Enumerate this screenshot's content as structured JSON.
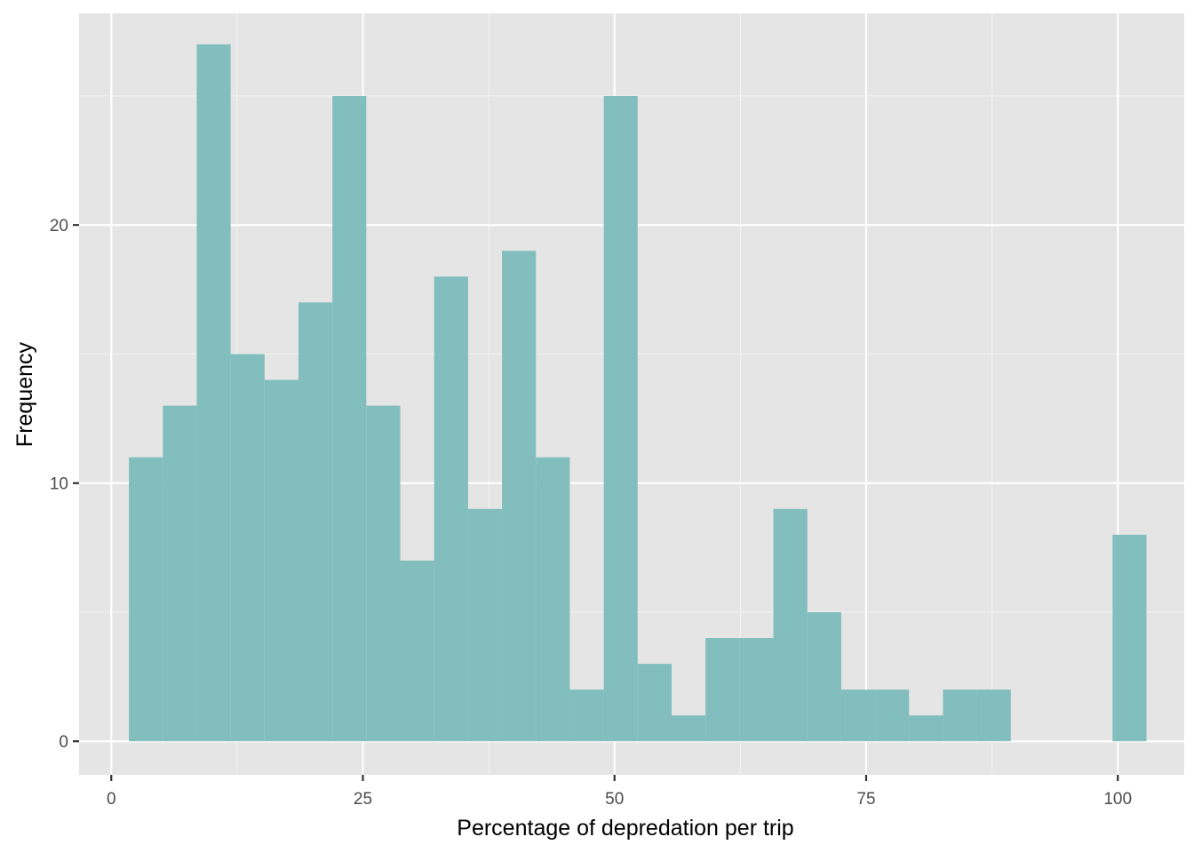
{
  "chart_data": {
    "type": "bar",
    "subtype": "histogram",
    "xlabel": "Percentage of depredation per trip",
    "ylabel": "Frequency",
    "xlim": [
      -3.2,
      106.6
    ],
    "ylim": [
      -1.3,
      28.2
    ],
    "x_ticks": [
      0,
      25,
      50,
      75,
      100
    ],
    "x_minor_ticks": [
      12.5,
      37.5,
      62.5,
      87.5
    ],
    "y_ticks": [
      0,
      10,
      20
    ],
    "y_minor_ticks": [
      5,
      15,
      25
    ],
    "x_tick_labels": [
      "0",
      "25",
      "50",
      "75",
      "100"
    ],
    "y_tick_labels": [
      "0",
      "10",
      "20"
    ],
    "bin_width": 3.37,
    "bins": [
      {
        "x0": 1.75,
        "x1": 5.12,
        "count": 11
      },
      {
        "x0": 5.12,
        "x1": 8.49,
        "count": 13
      },
      {
        "x0": 8.49,
        "x1": 11.86,
        "count": 27
      },
      {
        "x0": 11.86,
        "x1": 15.23,
        "count": 15
      },
      {
        "x0": 15.23,
        "x1": 18.6,
        "count": 14
      },
      {
        "x0": 18.6,
        "x1": 21.97,
        "count": 17
      },
      {
        "x0": 21.97,
        "x1": 25.34,
        "count": 25
      },
      {
        "x0": 25.34,
        "x1": 28.71,
        "count": 13
      },
      {
        "x0": 28.71,
        "x1": 32.08,
        "count": 7
      },
      {
        "x0": 32.08,
        "x1": 35.45,
        "count": 18
      },
      {
        "x0": 35.45,
        "x1": 38.82,
        "count": 9
      },
      {
        "x0": 38.82,
        "x1": 42.19,
        "count": 19
      },
      {
        "x0": 42.19,
        "x1": 45.56,
        "count": 11
      },
      {
        "x0": 45.56,
        "x1": 48.93,
        "count": 2
      },
      {
        "x0": 48.93,
        "x1": 52.3,
        "count": 25
      },
      {
        "x0": 52.3,
        "x1": 55.67,
        "count": 3
      },
      {
        "x0": 55.67,
        "x1": 59.04,
        "count": 1
      },
      {
        "x0": 59.04,
        "x1": 62.41,
        "count": 4
      },
      {
        "x0": 62.41,
        "x1": 65.78,
        "count": 4
      },
      {
        "x0": 65.78,
        "x1": 69.15,
        "count": 9
      },
      {
        "x0": 69.15,
        "x1": 72.52,
        "count": 5
      },
      {
        "x0": 72.52,
        "x1": 75.89,
        "count": 2
      },
      {
        "x0": 75.89,
        "x1": 79.26,
        "count": 2
      },
      {
        "x0": 79.26,
        "x1": 82.63,
        "count": 1
      },
      {
        "x0": 82.63,
        "x1": 86.0,
        "count": 2
      },
      {
        "x0": 86.0,
        "x1": 89.37,
        "count": 2
      },
      {
        "x0": 89.37,
        "x1": 92.74,
        "count": 0
      },
      {
        "x0": 92.74,
        "x1": 96.11,
        "count": 0
      },
      {
        "x0": 96.11,
        "x1": 99.48,
        "count": 0
      },
      {
        "x0": 99.48,
        "x1": 102.85,
        "count": 8
      }
    ],
    "grid": true,
    "legend": "none",
    "colors": {
      "bar": "#82bebd",
      "panel_background": "#e5e5e5",
      "grid_major": "#ffffff",
      "grid_minor": "#f2f2f2",
      "tick_label": "#4d4d4d",
      "axis_title": "#000000"
    }
  }
}
